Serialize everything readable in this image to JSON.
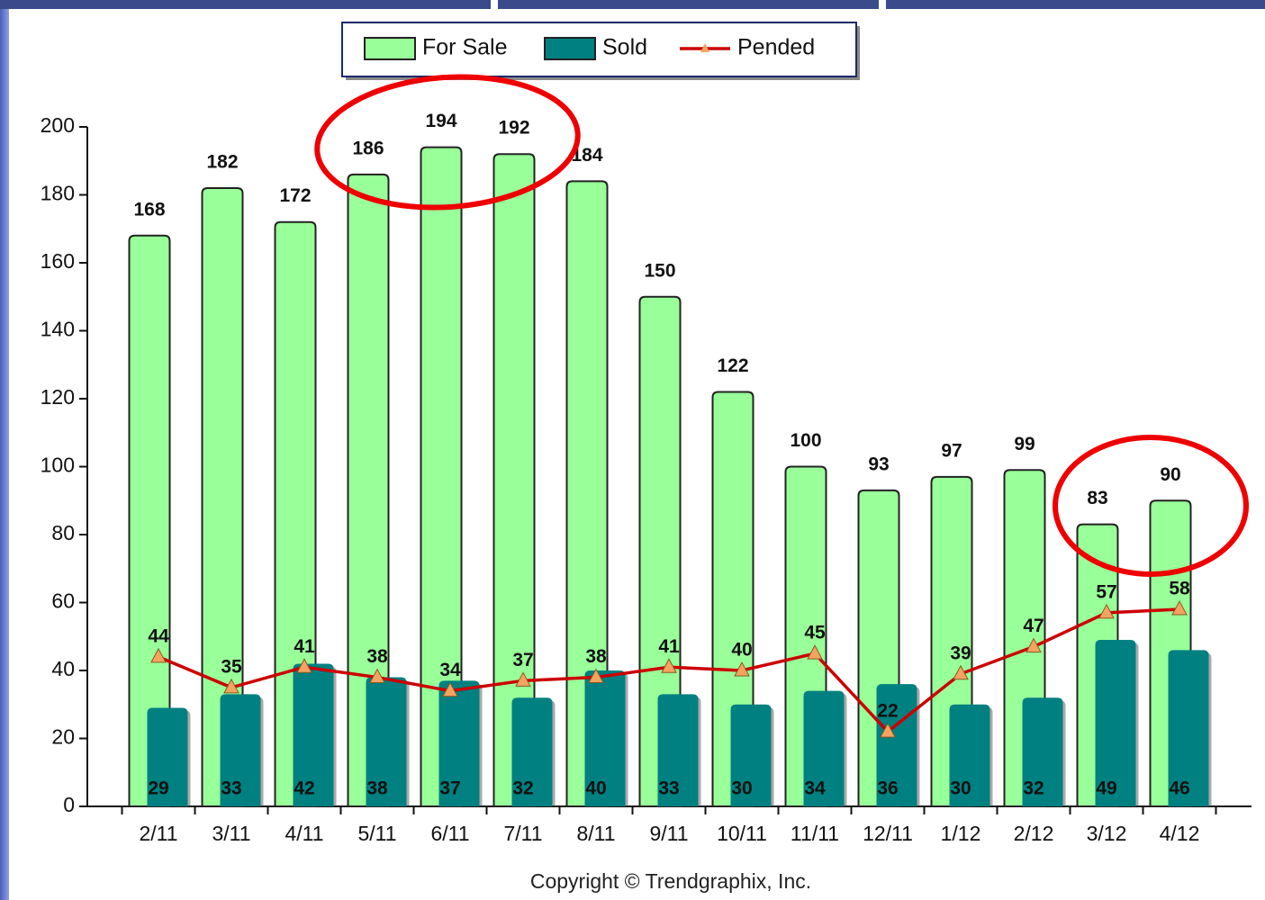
{
  "chart_data": {
    "type": "bar_line",
    "categories": [
      "2/11",
      "3/11",
      "4/11",
      "5/11",
      "6/11",
      "7/11",
      "8/11",
      "9/11",
      "10/11",
      "11/11",
      "12/11",
      "1/12",
      "2/12",
      "3/12",
      "4/12"
    ],
    "series": [
      {
        "name": "For Sale",
        "type": "bar",
        "color": "#99ff99",
        "values": [
          168,
          182,
          172,
          186,
          194,
          192,
          184,
          150,
          122,
          100,
          93,
          97,
          99,
          83,
          90
        ]
      },
      {
        "name": "Sold",
        "type": "bar",
        "color": "#008080",
        "values": [
          29,
          33,
          42,
          38,
          37,
          32,
          40,
          33,
          30,
          34,
          36,
          30,
          32,
          49,
          46
        ]
      },
      {
        "name": "Pended",
        "type": "line",
        "color": "#cc0000",
        "marker_color": "#f4a460",
        "values": [
          44,
          35,
          41,
          38,
          34,
          37,
          38,
          41,
          40,
          45,
          22,
          39,
          47,
          57,
          58
        ]
      }
    ],
    "ylim": [
      0,
      200
    ],
    "yticks": [
      0,
      20,
      40,
      60,
      80,
      100,
      120,
      140,
      160,
      180,
      200
    ],
    "grid": false,
    "legend": "top",
    "source": "Copyright © Trendgraphix, Inc."
  }
}
